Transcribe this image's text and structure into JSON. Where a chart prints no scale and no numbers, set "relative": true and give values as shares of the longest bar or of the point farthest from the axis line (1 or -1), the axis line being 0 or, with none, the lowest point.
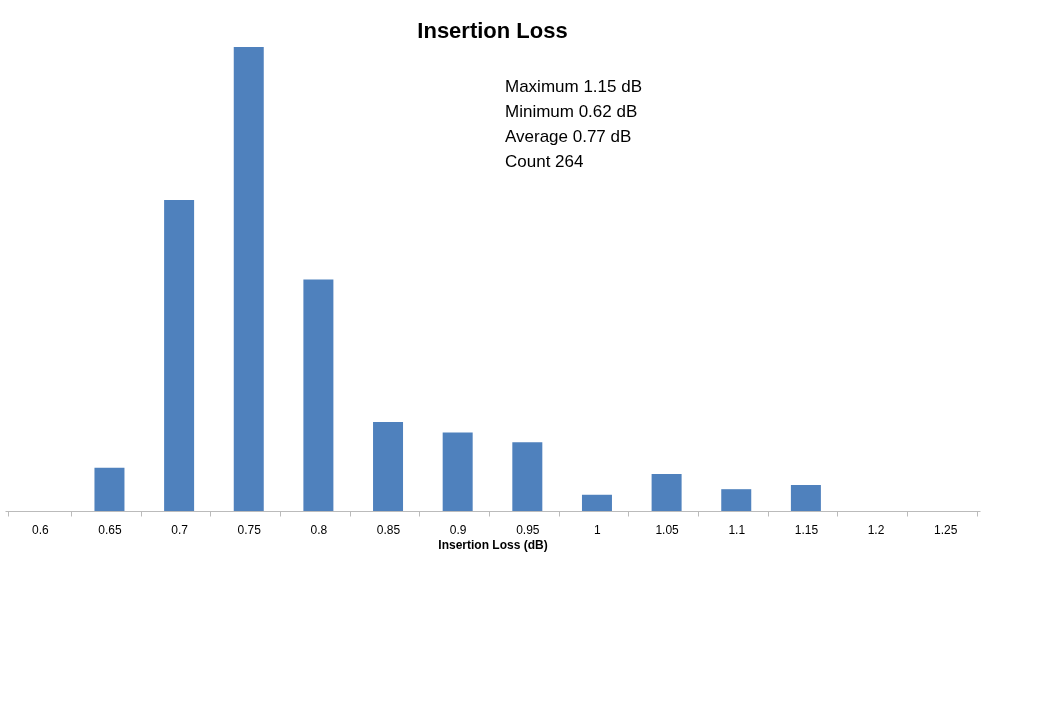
{
  "chart_data": {
    "type": "bar",
    "title": "Insertion Loss",
    "xlabel": "Insertion Loss (dB)",
    "relative": true,
    "categories": [
      "0.6",
      "0.65",
      "0.7",
      "0.75",
      "0.8",
      "0.85",
      "0.9",
      "0.95",
      "1",
      "1.05",
      "1.1",
      "1.15",
      "1.2",
      "1.25"
    ],
    "series": [
      {
        "color": "#4f81bd",
        "values": [
          0,
          0.093,
          0.67,
          1,
          0.499,
          0.192,
          0.169,
          0.148,
          0.035,
          0.08,
          0.047,
          0.056,
          0,
          0
        ]
      }
    ],
    "annotations": [
      "Maximum   1.15 dB",
      "Minimum    0.62 dB",
      "Average     0.77 dB",
      "Count         264"
    ],
    "grid": false
  }
}
